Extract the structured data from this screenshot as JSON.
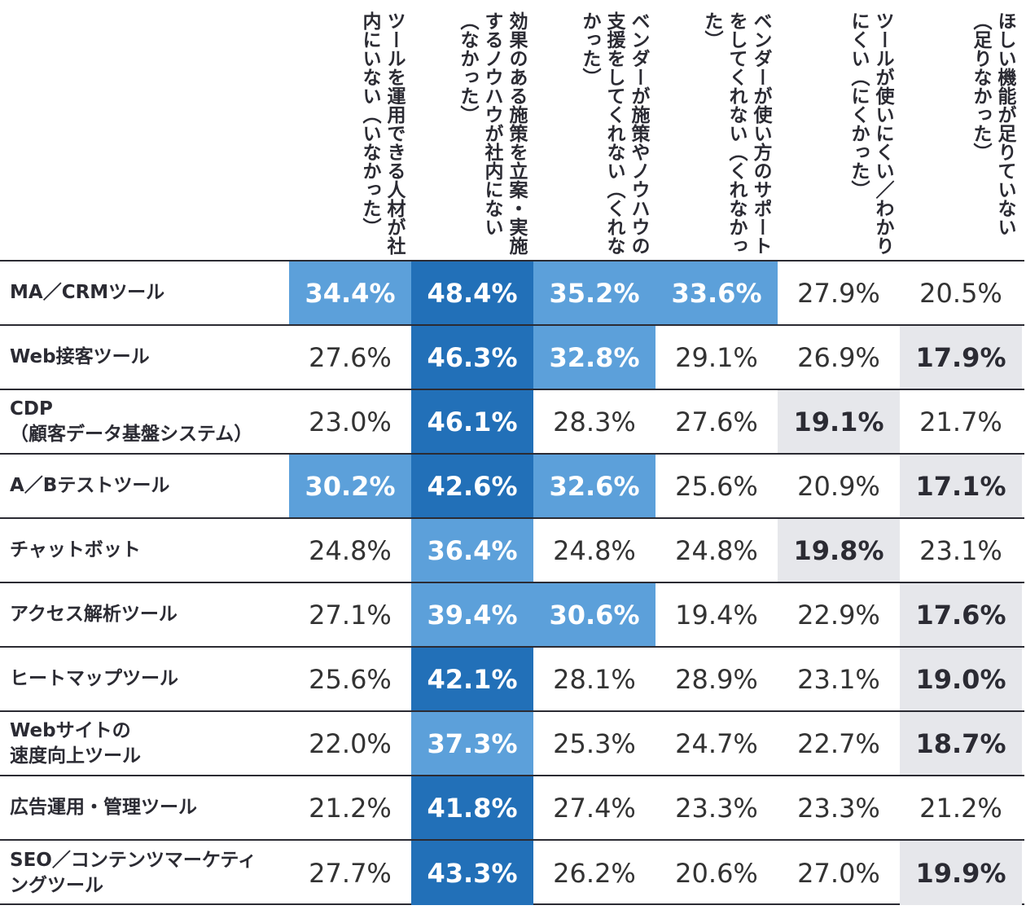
{
  "chart_data": {
    "type": "table",
    "columns": [
      "ツールを運用できる人材が社内にいない（いなかった）",
      "効果のある施策を立案・実施するノウハウが社内にない（なかった）",
      "ベンダーが施策やノウハウの支援をしてくれない（くれなかった）",
      "ベンダーが使い方のサポートをしてくれない（くれなかった）",
      "ツールが使いにくい／わかりにくい（にくかった）",
      "ほしい機能が足りていない（足りなかった）"
    ],
    "rows": [
      {
        "label": "MA／CRMツール",
        "values": [
          "34.4%",
          "48.4%",
          "35.2%",
          "33.6%",
          "27.9%",
          "20.5%"
        ],
        "styles": [
          "light",
          "dark",
          "light",
          "light",
          "",
          ""
        ]
      },
      {
        "label": "Web接客ツール",
        "values": [
          "27.6%",
          "46.3%",
          "32.8%",
          "29.1%",
          "26.9%",
          "17.9%"
        ],
        "styles": [
          "",
          "dark",
          "light",
          "",
          "",
          "low"
        ]
      },
      {
        "label": "CDP\n（顧客データ基盤システム）",
        "values": [
          "23.0%",
          "46.1%",
          "28.3%",
          "27.6%",
          "19.1%",
          "21.7%"
        ],
        "styles": [
          "",
          "dark",
          "",
          "",
          "low",
          ""
        ]
      },
      {
        "label": "A／Bテストツール",
        "values": [
          "30.2%",
          "42.6%",
          "32.6%",
          "25.6%",
          "20.9%",
          "17.1%"
        ],
        "styles": [
          "light",
          "dark",
          "light",
          "",
          "",
          "low"
        ]
      },
      {
        "label": "チャットボット",
        "values": [
          "24.8%",
          "36.4%",
          "24.8%",
          "24.8%",
          "19.8%",
          "23.1%"
        ],
        "styles": [
          "",
          "light",
          "",
          "",
          "low",
          ""
        ]
      },
      {
        "label": "アクセス解析ツール",
        "values": [
          "27.1%",
          "39.4%",
          "30.6%",
          "19.4%",
          "22.9%",
          "17.6%"
        ],
        "styles": [
          "",
          "light",
          "light",
          "",
          "",
          "low"
        ]
      },
      {
        "label": "ヒートマップツール",
        "values": [
          "25.6%",
          "42.1%",
          "28.1%",
          "28.9%",
          "23.1%",
          "19.0%"
        ],
        "styles": [
          "",
          "dark",
          "",
          "",
          "",
          "low"
        ]
      },
      {
        "label": "Webサイトの\n速度向上ツール",
        "values": [
          "22.0%",
          "37.3%",
          "25.3%",
          "24.7%",
          "22.7%",
          "18.7%"
        ],
        "styles": [
          "",
          "light",
          "",
          "",
          "",
          "low"
        ]
      },
      {
        "label": "広告運用・管理ツール",
        "values": [
          "21.2%",
          "41.8%",
          "27.4%",
          "23.3%",
          "23.3%",
          "21.2%"
        ],
        "styles": [
          "",
          "dark",
          "",
          "",
          "",
          ""
        ]
      },
      {
        "label": "SEO／コンテンツマーケティ\nングツール",
        "values": [
          "27.7%",
          "43.3%",
          "26.2%",
          "20.6%",
          "27.0%",
          "19.9%"
        ],
        "styles": [
          "",
          "dark",
          "",
          "",
          "",
          "low"
        ]
      }
    ]
  },
  "colors": {
    "light": "#5ca0da",
    "dark": "#2270b8",
    "low": "#e6e7eb",
    "text": "#2b2b33"
  }
}
